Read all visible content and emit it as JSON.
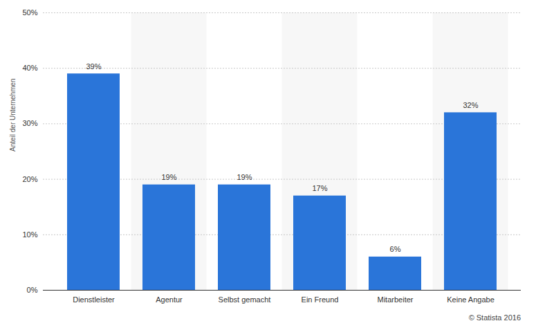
{
  "chart_data": {
    "type": "bar",
    "y_label": "Anteil der Unternehmen",
    "caption": "© Statista 2016",
    "categories": [
      "Dienstleister",
      "Agentur",
      "Selbst gemacht",
      "Ein Freund",
      "Mitarbeiter",
      "Keine Angabe"
    ],
    "values": [
      39,
      19,
      19,
      17,
      6,
      32
    ],
    "value_labels": [
      "39%",
      "19%",
      "19%",
      "17%",
      "6%",
      "32%"
    ],
    "color": "#2a75d9",
    "ylim": [
      0,
      50
    ],
    "yticks": [
      {
        "value": 0,
        "label": "0%"
      },
      {
        "value": 10,
        "label": "10%"
      },
      {
        "value": 20,
        "label": "20%"
      },
      {
        "value": 30,
        "label": "30%"
      },
      {
        "value": 40,
        "label": "40%"
      },
      {
        "value": 50,
        "label": "50%"
      }
    ],
    "grid": true,
    "data_labels": true
  }
}
